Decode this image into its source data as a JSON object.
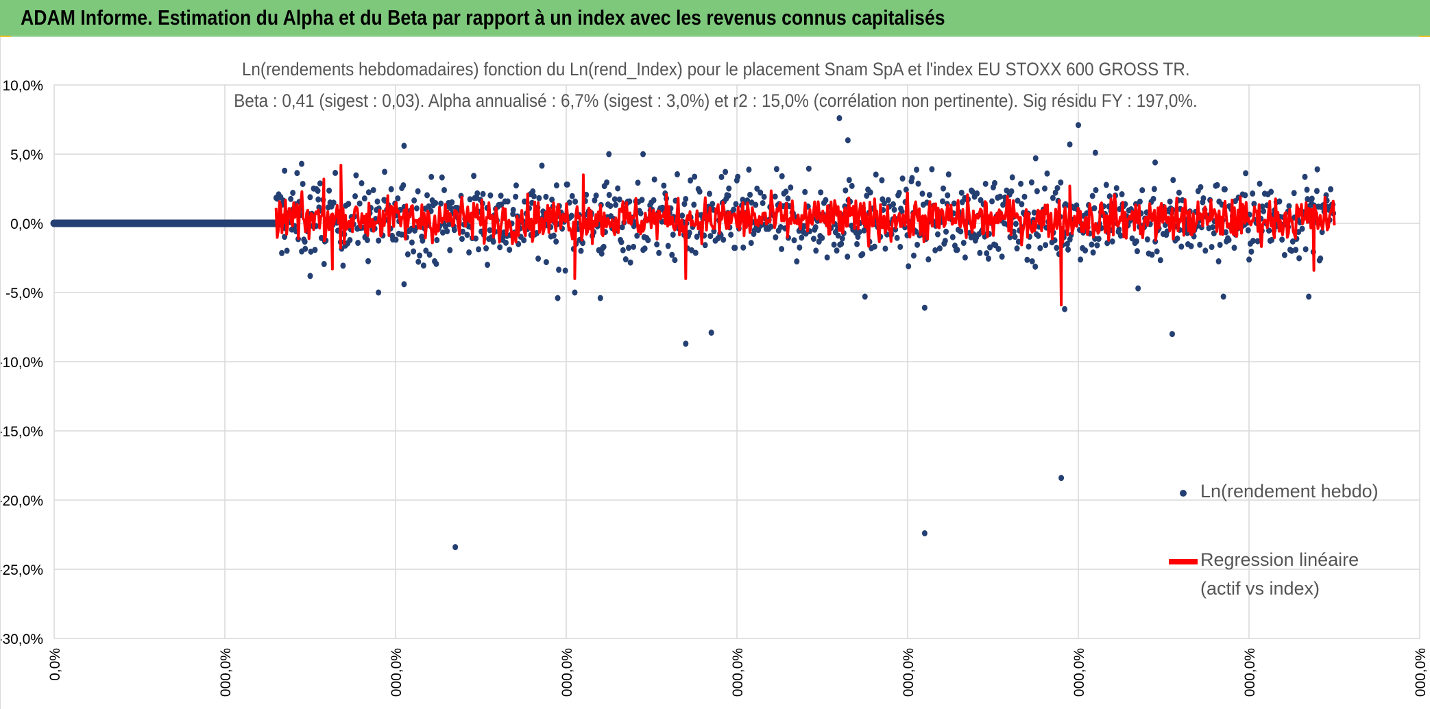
{
  "header": {
    "title": "ADAM Informe. Estimation du Alpha et du Beta par rapport à un index avec les revenus connus capitalisés"
  },
  "colors": {
    "header_bg": "#7ec87c",
    "scatter_color": "#243f72",
    "regression_color": "#ff0000",
    "grid_color": "#d9d9d9",
    "text_color": "#595959"
  },
  "chart_data": {
    "type": "scatter",
    "title_line1": "Ln(rendements hebdomadaires) fonction du Ln(rend_Index) pour le placement Snam SpA et l'index EU STOXX 600 GROSS TR.",
    "title_line2": "Beta : 0,41 (sigest : 0,03). Alpha annualisé : 6,7% (sigest : 3,0%) et r2 : 15,0% (corrélation non pertinente). Sig résidu FY : 197,0%.",
    "y_ticks": [
      "10,0%",
      "5,0%",
      "0,0%",
      "-5,0%",
      "-10,0%",
      "-15,0%",
      "-20,0%",
      "-25,0%",
      "-30,0%"
    ],
    "x_ticks": [
      "0,0%",
      "000,0%",
      "000,0%",
      "000,0%",
      "000,0%",
      "000,0%",
      "000,0%",
      "000,0%",
      "000,0%"
    ],
    "ylim": [
      -30,
      10
    ],
    "xlim": [
      0,
      8
    ],
    "grid": true,
    "legend_position": "right",
    "series": [
      {
        "name": "Ln(rendement hebdo)",
        "kind": "markers",
        "zero_segment": {
          "x_start": 0,
          "x_end": 1.3
        },
        "scatter_range": {
          "x_start": 1.3,
          "x_end": 7.5
        },
        "notable_points": [
          {
            "x": 1.35,
            "y": 3.8
          },
          {
            "x": 1.45,
            "y": 4.3
          },
          {
            "x": 1.5,
            "y": -3.8
          },
          {
            "x": 1.9,
            "y": -5.0
          },
          {
            "x": 2.05,
            "y": -4.4
          },
          {
            "x": 2.05,
            "y": 5.6
          },
          {
            "x": 2.35,
            "y": -23.4
          },
          {
            "x": 2.95,
            "y": -5.4
          },
          {
            "x": 3.05,
            "y": -5.0
          },
          {
            "x": 3.2,
            "y": -5.4
          },
          {
            "x": 3.25,
            "y": 5.0
          },
          {
            "x": 3.45,
            "y": 5.0
          },
          {
            "x": 3.7,
            "y": -8.7
          },
          {
            "x": 3.85,
            "y": -7.9
          },
          {
            "x": 3.95,
            "y": 2.0
          },
          {
            "x": 4.6,
            "y": 7.6
          },
          {
            "x": 4.65,
            "y": 6.0
          },
          {
            "x": 4.75,
            "y": -5.3
          },
          {
            "x": 5.1,
            "y": -22.4
          },
          {
            "x": 5.1,
            "y": -6.1
          },
          {
            "x": 5.75,
            "y": 4.7
          },
          {
            "x": 5.9,
            "y": -18.4
          },
          {
            "x": 5.92,
            "y": -6.2
          },
          {
            "x": 5.95,
            "y": 5.7
          },
          {
            "x": 6.0,
            "y": 7.1
          },
          {
            "x": 6.1,
            "y": 5.1
          },
          {
            "x": 6.35,
            "y": -4.7
          },
          {
            "x": 6.45,
            "y": 4.4
          },
          {
            "x": 6.55,
            "y": -8.0
          },
          {
            "x": 6.85,
            "y": -5.3
          },
          {
            "x": 7.35,
            "y": -5.3
          },
          {
            "x": 7.4,
            "y": 3.9
          }
        ]
      },
      {
        "name": "Regression linéaire\n(actif vs index)",
        "kind": "line",
        "notable_points": [
          {
            "x": 1.58,
            "y": 3.2
          },
          {
            "x": 1.63,
            "y": -3.3
          },
          {
            "x": 1.68,
            "y": 4.2
          },
          {
            "x": 3.1,
            "y": 3.5
          },
          {
            "x": 3.05,
            "y": -4.0
          },
          {
            "x": 3.7,
            "y": -4.0
          },
          {
            "x": 5.9,
            "y": -5.9
          },
          {
            "x": 5.95,
            "y": 2.7
          },
          {
            "x": 7.38,
            "y": -3.4
          }
        ]
      }
    ],
    "legend": [
      {
        "label": "Ln(rendement hebdo)",
        "marker": "dot"
      },
      {
        "label_line1": "Regression linéaire",
        "label_line2": "(actif vs index)",
        "marker": "line"
      }
    ]
  }
}
